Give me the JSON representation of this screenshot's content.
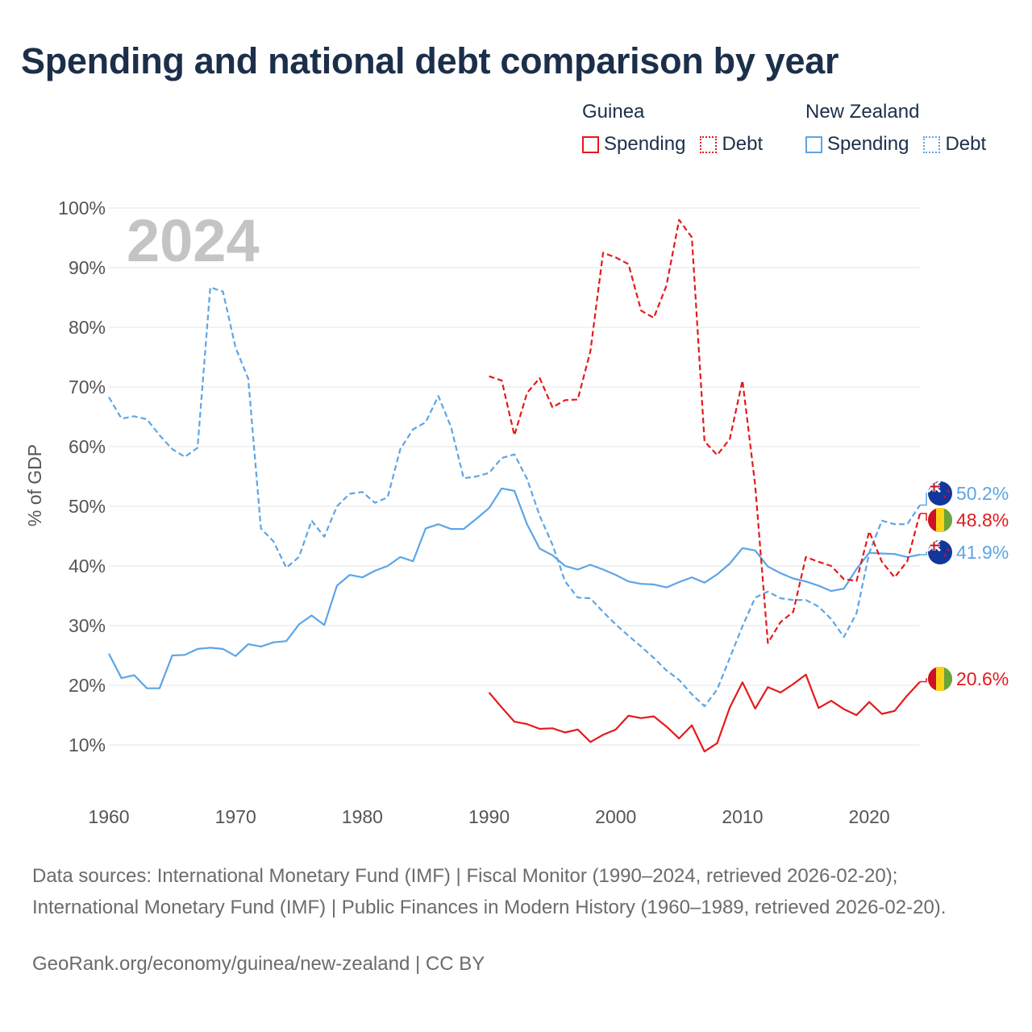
{
  "title": "Spending and national debt comparison by year",
  "legend": {
    "guinea": {
      "name": "Guinea",
      "spending": "Spending",
      "debt": "Debt"
    },
    "newzealand": {
      "name": "New Zealand",
      "spending": "Spending",
      "debt": "Debt"
    }
  },
  "footer": {
    "source": "Data sources: International Monetary Fund (IMF) | Fiscal Monitor (1990–2024, retrieved 2026-02-20); International Monetary Fund (IMF) | Public Finances in Modern History (1960–1989, retrieved 2026-02-20).",
    "credit": "GeoRank.org/economy/guinea/new-zealand | CC BY"
  },
  "colors": {
    "guinea": "#e41a1c",
    "newzealand": "#5da5e6",
    "grid": "#e6e6e6",
    "year": "#c4c4c4",
    "axis_text": "#555555"
  },
  "chart_data": {
    "type": "line",
    "ylabel": "% of GDP",
    "year_label": "2024",
    "xlim": [
      1960,
      2024
    ],
    "ylim": [
      0,
      100
    ],
    "x_ticks": [
      1960,
      1970,
      1980,
      1990,
      2000,
      2010,
      2020
    ],
    "y_ticks": [
      10,
      20,
      30,
      40,
      50,
      60,
      70,
      80,
      90,
      100
    ],
    "series": [
      {
        "id": "nz-debt",
        "name": "New Zealand Debt",
        "country": "newzealand",
        "style": "dashed",
        "start": 1960,
        "end_label": "50.2%",
        "end_value": 50.2,
        "values": [
          68.3,
          64.7,
          65.1,
          64.6,
          61.9,
          59.6,
          58.3,
          59.8,
          86.7,
          86.0,
          76.6,
          71.4,
          46.3,
          44.1,
          39.7,
          41.5,
          47.6,
          44.9,
          50.0,
          52.1,
          52.4,
          50.6,
          51.5,
          59.6,
          62.9,
          64.1,
          68.5,
          63.3,
          54.7,
          55.0,
          55.6,
          58.1,
          58.7,
          54.6,
          48.4,
          43.6,
          37.4,
          34.7,
          34.6,
          32.3,
          30.2,
          28.3,
          26.5,
          24.6,
          22.5,
          20.9,
          18.5,
          16.5,
          19.3,
          24.6,
          29.9,
          34.7,
          35.7,
          34.6,
          34.3,
          34.3,
          33.2,
          31.1,
          28.1,
          32.1,
          42.2,
          47.6,
          47.0,
          47.0,
          50.2
        ]
      },
      {
        "id": "nz-spending",
        "name": "New Zealand Spending",
        "country": "newzealand",
        "style": "solid",
        "start": 1960,
        "end_label": "41.9%",
        "end_value": 41.9,
        "values": [
          25.3,
          21.2,
          21.7,
          19.5,
          19.5,
          25.0,
          25.1,
          26.1,
          26.3,
          26.1,
          24.9,
          26.9,
          26.5,
          27.2,
          27.4,
          30.2,
          31.7,
          30.1,
          36.7,
          38.5,
          38.1,
          39.2,
          40.0,
          41.5,
          40.8,
          46.3,
          47.0,
          46.2,
          46.2,
          47.9,
          49.7,
          53.0,
          52.6,
          47.0,
          42.9,
          41.8,
          40.0,
          39.4,
          40.2,
          39.4,
          38.5,
          37.4,
          37.0,
          36.9,
          36.4,
          37.3,
          38.1,
          37.2,
          38.6,
          40.4,
          43.0,
          42.6,
          39.9,
          38.8,
          37.9,
          37.4,
          36.7,
          35.8,
          36.2,
          39.5,
          42.2,
          42.1,
          42.0,
          41.5,
          41.9
        ]
      },
      {
        "id": "gn-debt",
        "name": "Guinea Debt",
        "country": "guinea",
        "style": "dashed",
        "start": 1990,
        "end_label": "48.8%",
        "end_value": 48.8,
        "values": [
          71.8,
          71.1,
          61.9,
          69.0,
          71.5,
          66.6,
          67.8,
          67.9,
          76.0,
          92.5,
          91.7,
          90.6,
          82.8,
          81.6,
          87.0,
          98.0,
          95.1,
          60.9,
          58.6,
          61.3,
          71.1,
          53.5,
          27.1,
          30.6,
          32.3,
          41.5,
          40.7,
          40.0,
          37.8,
          37.5,
          45.8,
          40.7,
          38.1,
          40.8,
          48.8
        ]
      },
      {
        "id": "gn-spending",
        "name": "Guinea Spending",
        "country": "guinea",
        "style": "solid",
        "start": 1990,
        "end_label": "20.6%",
        "end_value": 20.6,
        "values": [
          18.8,
          16.3,
          13.9,
          13.5,
          12.7,
          12.8,
          12.1,
          12.6,
          10.5,
          11.7,
          12.6,
          14.9,
          14.5,
          14.8,
          13.1,
          11.1,
          13.3,
          8.9,
          10.3,
          16.3,
          20.5,
          16.1,
          19.7,
          18.8,
          20.2,
          21.8,
          16.2,
          17.4,
          16.0,
          15.0,
          17.2,
          15.2,
          15.7,
          18.3,
          20.6
        ]
      }
    ]
  }
}
